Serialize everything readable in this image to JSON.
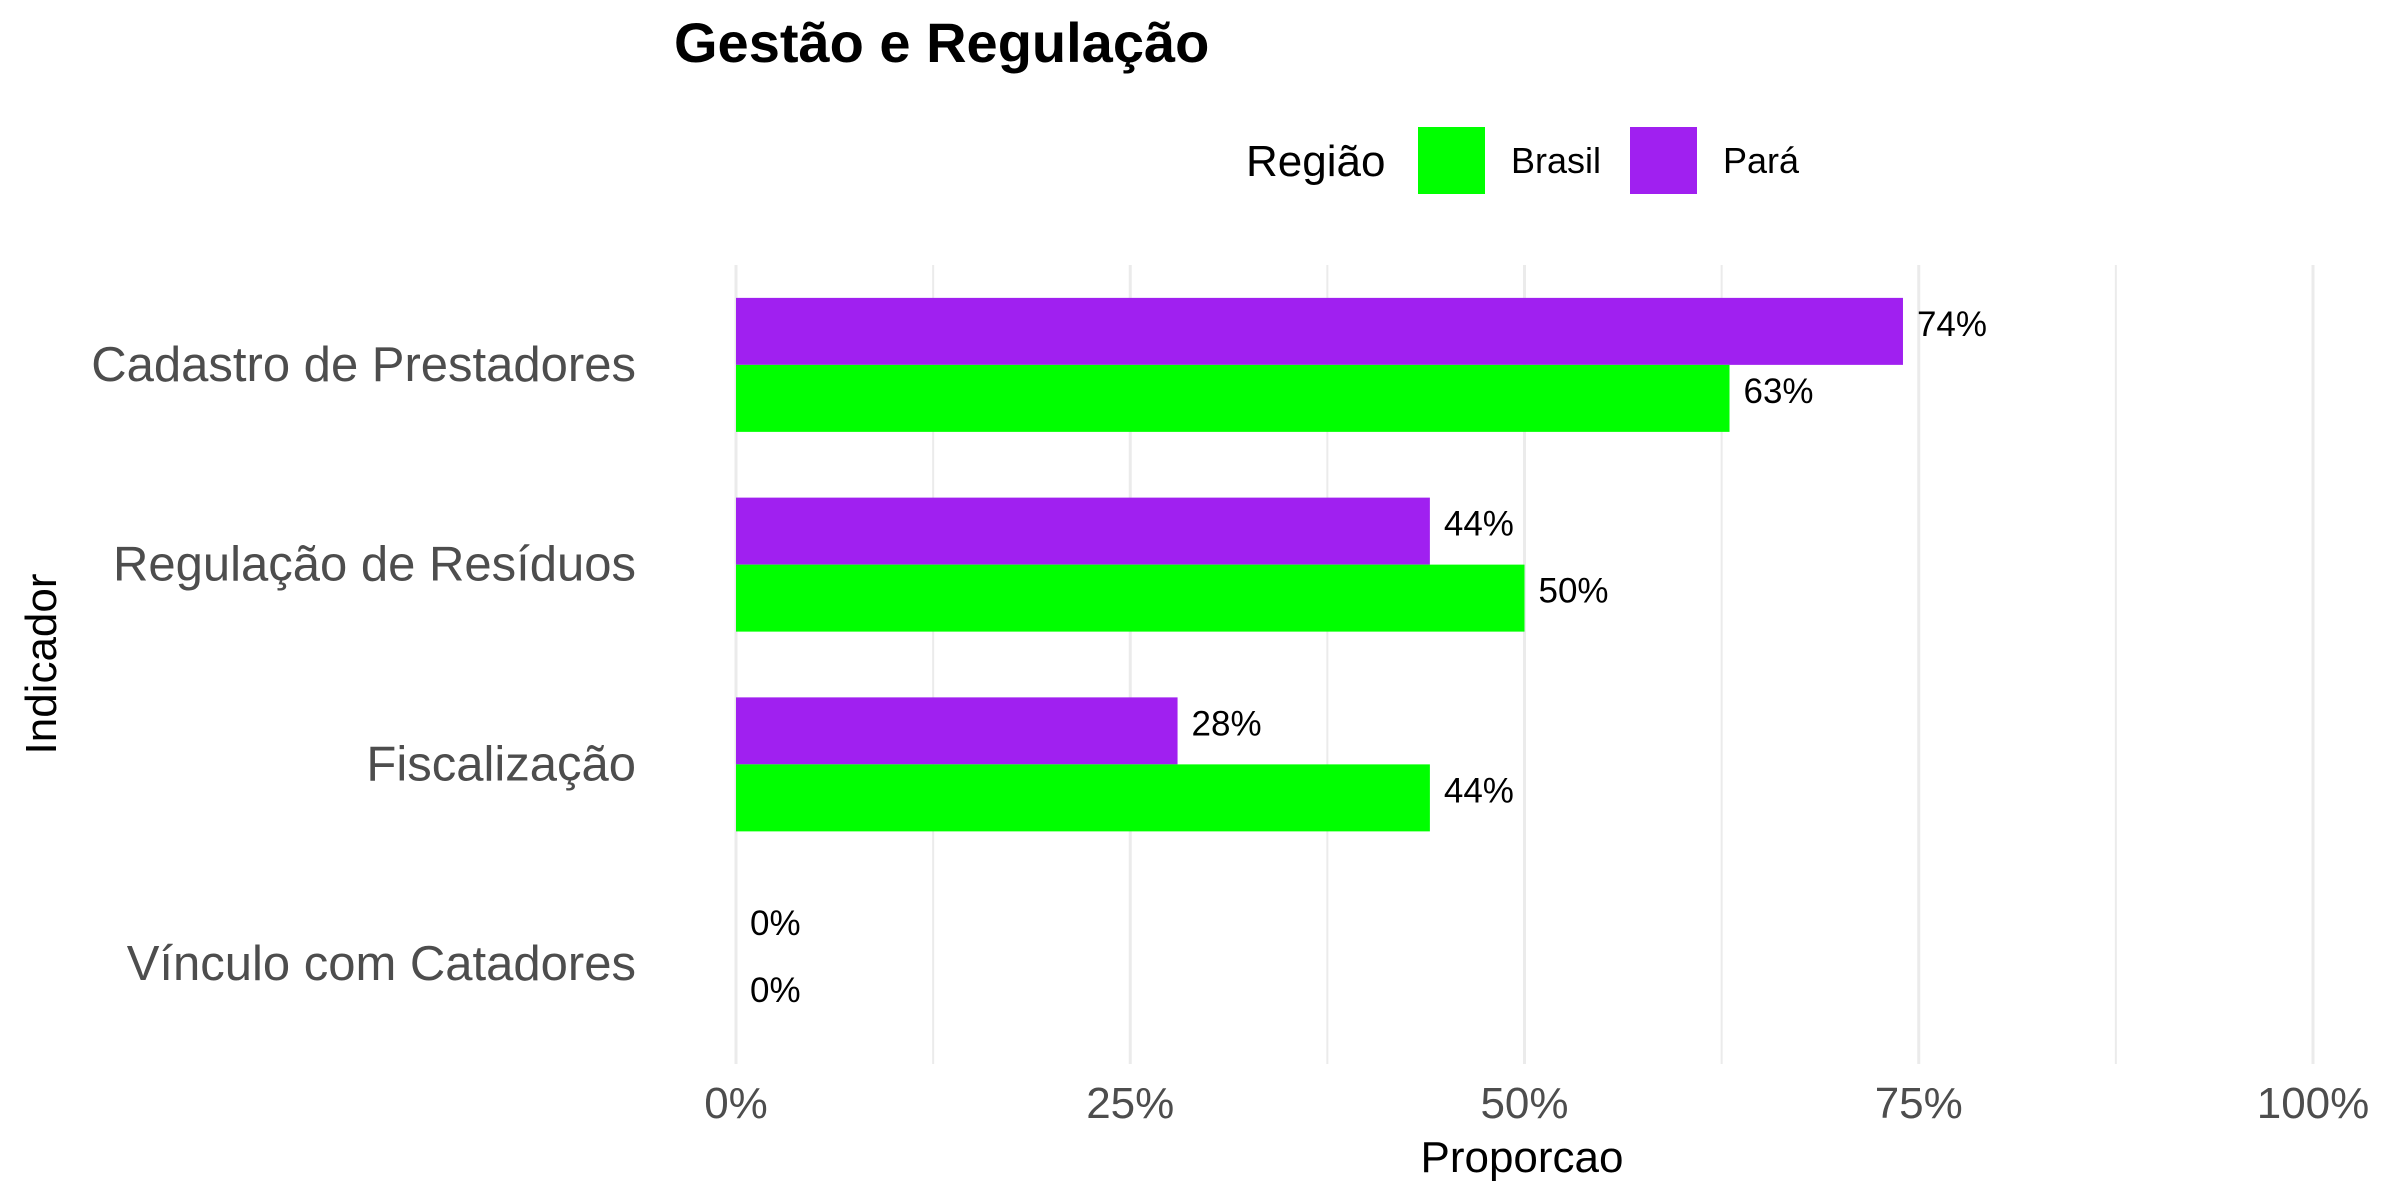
{
  "chart_data": {
    "type": "bar",
    "orientation": "horizontal",
    "title": "Gestão e Regulação",
    "xlabel": "Proporcao",
    "ylabel": "Indicador",
    "categories": [
      "Cadastro de Prestadores",
      "Regulação de Resíduos",
      "Fiscalização",
      "Vínculo com Catadores"
    ],
    "series": [
      {
        "name": "Brasil",
        "color": "#00ff00",
        "values": [
          63,
          50,
          44,
          0
        ],
        "labels": [
          "63%",
          "50%",
          "44%",
          "0%"
        ]
      },
      {
        "name": "Pará",
        "color": "#a020f0",
        "values": [
          74,
          44,
          28,
          0
        ],
        "labels": [
          "74%",
          "44%",
          "28%",
          "0%"
        ]
      }
    ],
    "xlim": [
      0,
      100
    ],
    "ticks": [
      0,
      25,
      50,
      75,
      100
    ],
    "tick_labels": [
      "0%",
      "25%",
      "50%",
      "75%",
      "100%"
    ],
    "minor_ticks": [
      12.5,
      37.5,
      62.5,
      87.5
    ],
    "legend": {
      "title": "Região",
      "position": "top"
    },
    "grid": true
  }
}
